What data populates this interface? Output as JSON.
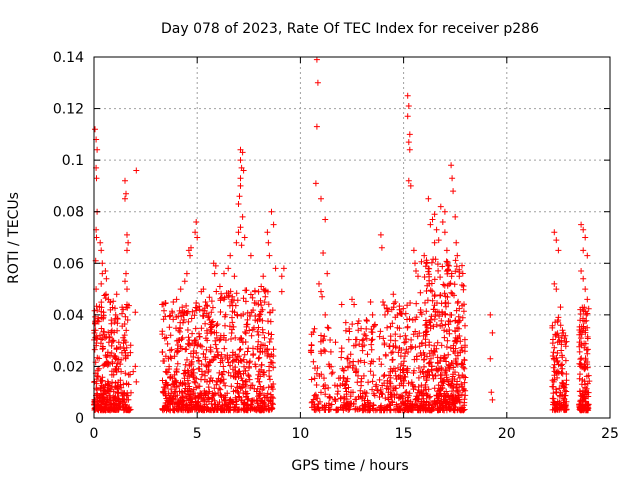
{
  "chart_data": {
    "type": "scatter",
    "title": "Day 078 of 2023, Rate Of TEC Index for receiver p286",
    "xlabel": "GPS time / hours",
    "ylabel": "ROTI / TECUs",
    "xlim": [
      0,
      25
    ],
    "ylim": [
      0,
      0.14
    ],
    "xticks": [
      0,
      5,
      10,
      15,
      20,
      25
    ],
    "xtick_labels": [
      "0",
      "5",
      "10",
      "15",
      "20",
      "25"
    ],
    "yticks": [
      0,
      0.02,
      0.04,
      0.06,
      0.08,
      0.1,
      0.12,
      0.14
    ],
    "ytick_labels": [
      "0",
      "0.02",
      "0.04",
      "0.06",
      "0.08",
      "0.1",
      "0.12",
      "0.14"
    ],
    "grid": true,
    "legend": "none",
    "marker": "plus",
    "color": "#ff0000",
    "clusters": [
      {
        "x0": 0.0,
        "x1": 0.5,
        "count": 140,
        "base": 0.012,
        "spread": 0.03
      },
      {
        "x0": 0.5,
        "x1": 1.2,
        "count": 160,
        "base": 0.015,
        "spread": 0.03
      },
      {
        "x0": 1.2,
        "x1": 1.8,
        "count": 90,
        "base": 0.012,
        "spread": 0.03
      },
      {
        "x0": 3.3,
        "x1": 5.5,
        "count": 420,
        "base": 0.012,
        "spread": 0.03
      },
      {
        "x0": 5.5,
        "x1": 8.7,
        "count": 520,
        "base": 0.012,
        "spread": 0.035
      },
      {
        "x0": 10.5,
        "x1": 12.2,
        "count": 120,
        "base": 0.008,
        "spread": 0.025
      },
      {
        "x0": 12.2,
        "x1": 14.0,
        "count": 160,
        "base": 0.01,
        "spread": 0.025
      },
      {
        "x0": 14.0,
        "x1": 15.8,
        "count": 260,
        "base": 0.012,
        "spread": 0.03
      },
      {
        "x0": 15.8,
        "x1": 18.0,
        "count": 480,
        "base": 0.014,
        "spread": 0.045
      },
      {
        "x0": 22.2,
        "x1": 22.9,
        "count": 140,
        "base": 0.01,
        "spread": 0.025
      },
      {
        "x0": 23.5,
        "x1": 24.0,
        "count": 140,
        "base": 0.01,
        "spread": 0.03
      }
    ],
    "points": [
      [
        0.05,
        0.112
      ],
      [
        0.1,
        0.108
      ],
      [
        0.15,
        0.104
      ],
      [
        0.1,
        0.097
      ],
      [
        0.12,
        0.093
      ],
      [
        0.15,
        0.08
      ],
      [
        0.1,
        0.073
      ],
      [
        0.12,
        0.07
      ],
      [
        0.08,
        0.061
      ],
      [
        0.1,
        0.05
      ],
      [
        0.3,
        0.068
      ],
      [
        0.35,
        0.065
      ],
      [
        0.4,
        0.06
      ],
      [
        0.4,
        0.056
      ],
      [
        0.35,
        0.052
      ],
      [
        0.55,
        0.057
      ],
      [
        0.6,
        0.054
      ],
      [
        0.58,
        0.048
      ],
      [
        0.7,
        0.046
      ],
      [
        0.8,
        0.045
      ],
      [
        1.1,
        0.048
      ],
      [
        1.05,
        0.04
      ],
      [
        1.5,
        0.092
      ],
      [
        1.55,
        0.087
      ],
      [
        1.5,
        0.085
      ],
      [
        1.6,
        0.071
      ],
      [
        1.65,
        0.068
      ],
      [
        1.6,
        0.065
      ],
      [
        1.55,
        0.056
      ],
      [
        1.5,
        0.053
      ],
      [
        1.6,
        0.05
      ],
      [
        1.6,
        0.044
      ],
      [
        2.05,
        0.096
      ],
      [
        2.0,
        0.041
      ],
      [
        2.0,
        0.02
      ],
      [
        1.9,
        0.018
      ],
      [
        2.05,
        0.014
      ],
      [
        3.3,
        0.044
      ],
      [
        4.0,
        0.046
      ],
      [
        4.2,
        0.05
      ],
      [
        4.4,
        0.053
      ],
      [
        4.5,
        0.056
      ],
      [
        4.6,
        0.065
      ],
      [
        4.7,
        0.066
      ],
      [
        4.65,
        0.063
      ],
      [
        4.9,
        0.072
      ],
      [
        4.95,
        0.076
      ],
      [
        5.0,
        0.07
      ],
      [
        5.2,
        0.049
      ],
      [
        5.3,
        0.05
      ],
      [
        5.4,
        0.045
      ],
      [
        5.6,
        0.038
      ],
      [
        5.8,
        0.06
      ],
      [
        5.9,
        0.059
      ],
      [
        5.85,
        0.056
      ],
      [
        6.1,
        0.051
      ],
      [
        6.3,
        0.056
      ],
      [
        6.5,
        0.058
      ],
      [
        6.6,
        0.063
      ],
      [
        6.7,
        0.047
      ],
      [
        6.8,
        0.055
      ],
      [
        6.9,
        0.068
      ],
      [
        7.0,
        0.072
      ],
      [
        7.0,
        0.083
      ],
      [
        7.05,
        0.086
      ],
      [
        7.1,
        0.09
      ],
      [
        7.1,
        0.093
      ],
      [
        7.15,
        0.097
      ],
      [
        7.1,
        0.1
      ],
      [
        7.1,
        0.104
      ],
      [
        7.2,
        0.103
      ],
      [
        7.25,
        0.096
      ],
      [
        7.2,
        0.078
      ],
      [
        7.1,
        0.074
      ],
      [
        7.3,
        0.07
      ],
      [
        7.15,
        0.067
      ],
      [
        7.6,
        0.063
      ],
      [
        7.8,
        0.049
      ],
      [
        8.1,
        0.051
      ],
      [
        8.2,
        0.055
      ],
      [
        8.3,
        0.047
      ],
      [
        8.4,
        0.072
      ],
      [
        8.45,
        0.068
      ],
      [
        8.5,
        0.063
      ],
      [
        8.6,
        0.08
      ],
      [
        8.7,
        0.075
      ],
      [
        8.8,
        0.058
      ],
      [
        9.2,
        0.058
      ],
      [
        9.1,
        0.049
      ],
      [
        9.1,
        0.055
      ],
      [
        10.8,
        0.139
      ],
      [
        10.85,
        0.13
      ],
      [
        10.8,
        0.113
      ],
      [
        10.75,
        0.091
      ],
      [
        11.0,
        0.085
      ],
      [
        11.1,
        0.064
      ],
      [
        10.9,
        0.052
      ],
      [
        11.0,
        0.049
      ],
      [
        11.05,
        0.047
      ],
      [
        11.2,
        0.077
      ],
      [
        11.3,
        0.056
      ],
      [
        11.2,
        0.04
      ],
      [
        11.0,
        0.032
      ],
      [
        11.1,
        0.03
      ],
      [
        12.0,
        0.044
      ],
      [
        12.2,
        0.037
      ],
      [
        12.5,
        0.046
      ],
      [
        12.6,
        0.044
      ],
      [
        12.8,
        0.034
      ],
      [
        13.0,
        0.03
      ],
      [
        13.2,
        0.038
      ],
      [
        13.4,
        0.045
      ],
      [
        13.5,
        0.04
      ],
      [
        13.6,
        0.036
      ],
      [
        13.9,
        0.071
      ],
      [
        13.95,
        0.066
      ],
      [
        14.0,
        0.045
      ],
      [
        14.1,
        0.04
      ],
      [
        14.2,
        0.035
      ],
      [
        14.5,
        0.048
      ],
      [
        14.6,
        0.045
      ],
      [
        14.7,
        0.035
      ],
      [
        14.8,
        0.042
      ],
      [
        15.2,
        0.125
      ],
      [
        15.25,
        0.121
      ],
      [
        15.2,
        0.117
      ],
      [
        15.3,
        0.11
      ],
      [
        15.25,
        0.107
      ],
      [
        15.3,
        0.104
      ],
      [
        15.25,
        0.092
      ],
      [
        15.35,
        0.09
      ],
      [
        15.5,
        0.065
      ],
      [
        15.55,
        0.06
      ],
      [
        15.6,
        0.057
      ],
      [
        15.7,
        0.055
      ],
      [
        16.0,
        0.063
      ],
      [
        16.1,
        0.06
      ],
      [
        16.2,
        0.058
      ],
      [
        16.3,
        0.075
      ],
      [
        16.4,
        0.077
      ],
      [
        16.5,
        0.079
      ],
      [
        16.6,
        0.073
      ],
      [
        16.7,
        0.069
      ],
      [
        16.8,
        0.082
      ],
      [
        16.9,
        0.076
      ],
      [
        17.0,
        0.072
      ],
      [
        17.1,
        0.065
      ],
      [
        17.2,
        0.059
      ],
      [
        17.3,
        0.098
      ],
      [
        17.35,
        0.093
      ],
      [
        17.4,
        0.088
      ],
      [
        17.5,
        0.078
      ],
      [
        17.55,
        0.068
      ],
      [
        17.6,
        0.063
      ],
      [
        17.7,
        0.055
      ],
      [
        16.2,
        0.085
      ],
      [
        16.5,
        0.068
      ],
      [
        17.0,
        0.08
      ],
      [
        19.2,
        0.04
      ],
      [
        19.3,
        0.033
      ],
      [
        19.2,
        0.023
      ],
      [
        19.25,
        0.01
      ],
      [
        19.3,
        0.007
      ],
      [
        22.3,
        0.072
      ],
      [
        22.4,
        0.069
      ],
      [
        22.5,
        0.065
      ],
      [
        22.3,
        0.052
      ],
      [
        22.4,
        0.05
      ],
      [
        22.6,
        0.043
      ],
      [
        22.5,
        0.039
      ],
      [
        22.7,
        0.034
      ],
      [
        23.6,
        0.075
      ],
      [
        23.7,
        0.073
      ],
      [
        23.8,
        0.07
      ],
      [
        23.7,
        0.065
      ],
      [
        23.9,
        0.063
      ],
      [
        23.6,
        0.057
      ],
      [
        23.7,
        0.054
      ],
      [
        23.8,
        0.05
      ],
      [
        23.9,
        0.046
      ],
      [
        23.85,
        0.04
      ]
    ]
  }
}
